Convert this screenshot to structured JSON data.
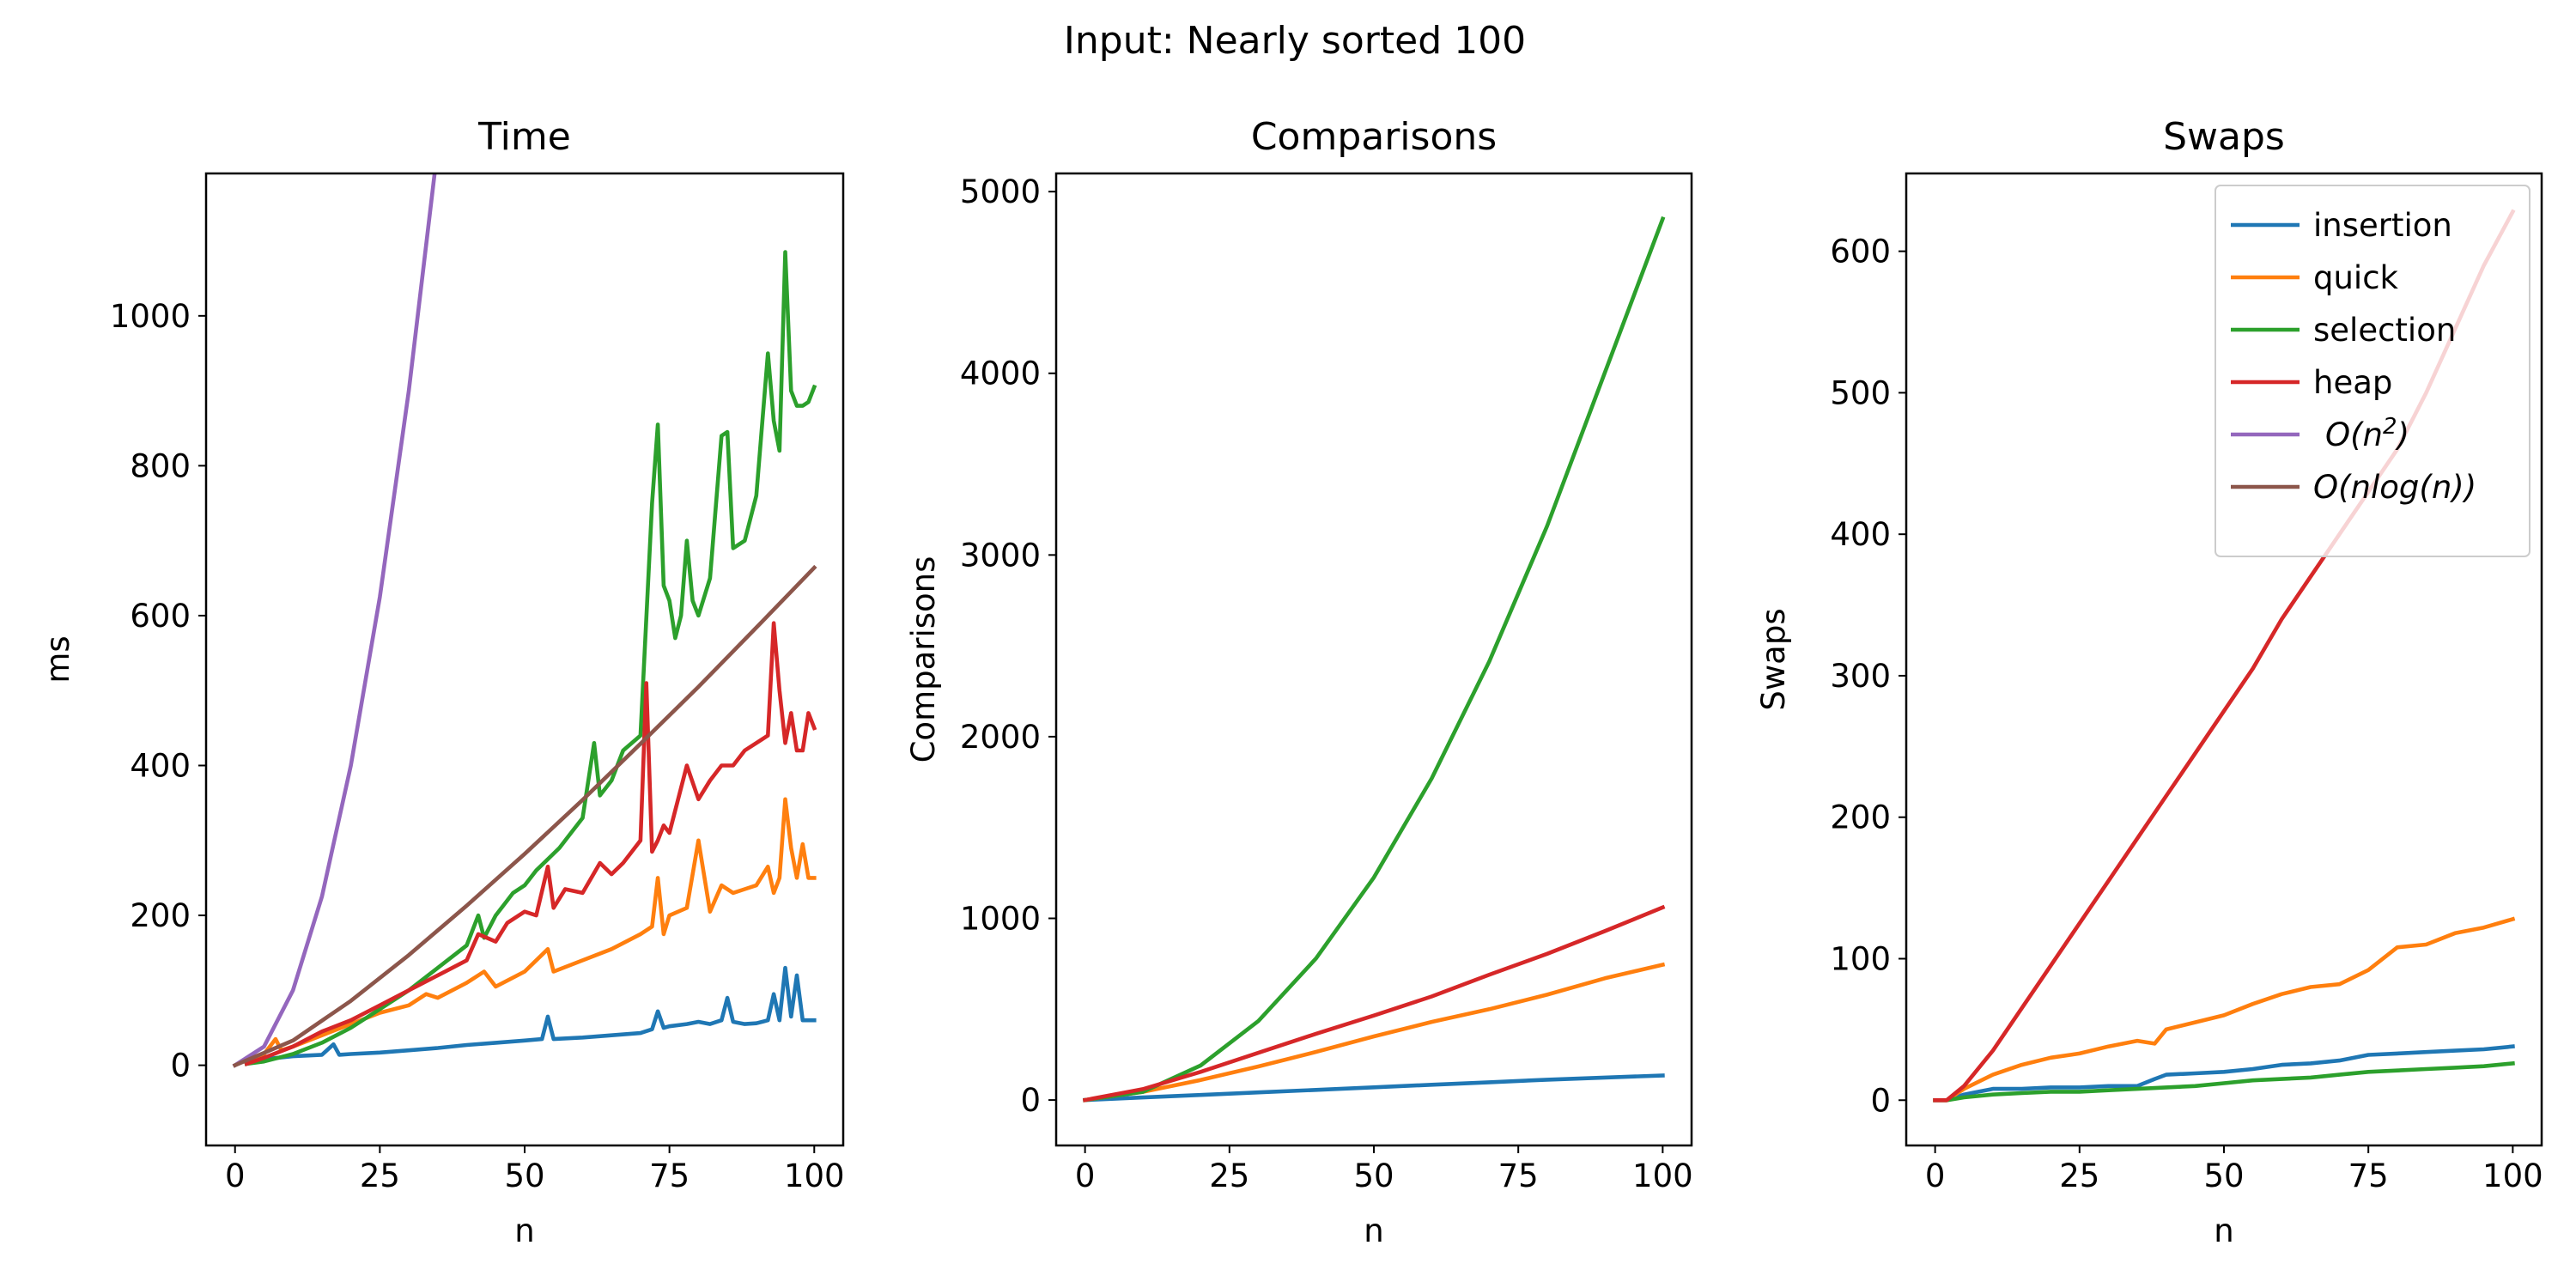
{
  "figure_title": "Input: Nearly sorted 100",
  "legend": {
    "placement": "upper-right",
    "panel": 2,
    "entries": [
      {
        "label": " insertion",
        "color": "#1f77b4",
        "icon": "line-swatch"
      },
      {
        "label": " quick",
        "color": "#ff7f0e",
        "icon": "line-swatch"
      },
      {
        "label": " selection",
        "color": "#2ca02c",
        "icon": "line-swatch"
      },
      {
        "label": " heap",
        "color": "#d62728",
        "icon": "line-swatch"
      },
      {
        "label_parts": [
          "O(n",
          "2",
          ")"
        ],
        "color": "#9467bd",
        "icon": "line-swatch"
      },
      {
        "label": "O(nlog(n))",
        "color": "#8c564b",
        "icon": "line-swatch"
      }
    ]
  },
  "chart_data": [
    {
      "type": "line",
      "title": "Time",
      "xlabel": "n",
      "ylabel": "ms",
      "xlim": [
        -5,
        105
      ],
      "ylim": [
        -107,
        1190
      ],
      "xticks": [
        0,
        25,
        50,
        75,
        100
      ],
      "yticks": [
        0,
        200,
        400,
        600,
        800,
        1000
      ],
      "grid": false,
      "series": [
        {
          "color": "#1f77b4",
          "x": [
            2,
            5,
            10,
            15,
            17,
            18,
            20,
            25,
            30,
            35,
            40,
            45,
            50,
            53,
            54,
            55,
            60,
            65,
            70,
            72,
            73,
            74,
            75,
            78,
            80,
            82,
            84,
            85,
            86,
            88,
            90,
            92,
            93,
            94,
            95,
            96,
            97,
            98,
            99,
            100
          ],
          "y": [
            2,
            8,
            12,
            14,
            28,
            14,
            15,
            17,
            20,
            23,
            27,
            30,
            33,
            35,
            65,
            35,
            37,
            40,
            43,
            48,
            72,
            50,
            52,
            55,
            58,
            55,
            60,
            90,
            58,
            55,
            56,
            60,
            95,
            60,
            130,
            65,
            120,
            60,
            60,
            60
          ]
        },
        {
          "color": "#ff7f0e",
          "x": [
            2,
            5,
            7,
            8,
            10,
            15,
            20,
            25,
            30,
            33,
            35,
            40,
            43,
            45,
            50,
            54,
            55,
            60,
            65,
            70,
            72,
            73,
            74,
            75,
            78,
            80,
            82,
            84,
            86,
            88,
            90,
            92,
            93,
            94,
            95,
            96,
            97,
            98,
            99,
            100
          ],
          "y": [
            5,
            15,
            35,
            20,
            25,
            40,
            55,
            70,
            80,
            95,
            90,
            110,
            125,
            105,
            125,
            155,
            125,
            140,
            155,
            175,
            185,
            250,
            175,
            200,
            210,
            300,
            205,
            240,
            230,
            235,
            240,
            265,
            230,
            250,
            355,
            290,
            250,
            295,
            250,
            250
          ]
        },
        {
          "color": "#2ca02c",
          "x": [
            2,
            5,
            10,
            15,
            20,
            25,
            30,
            35,
            40,
            42,
            43,
            45,
            47,
            48,
            50,
            52,
            54,
            56,
            58,
            60,
            62,
            63,
            65,
            67,
            70,
            72,
            73,
            74,
            75,
            76,
            77,
            78,
            79,
            80,
            82,
            84,
            85,
            86,
            88,
            90,
            92,
            93,
            94,
            95,
            96,
            97,
            98,
            99,
            100
          ],
          "y": [
            2,
            5,
            15,
            30,
            50,
            75,
            100,
            130,
            160,
            200,
            170,
            200,
            220,
            230,
            240,
            260,
            275,
            290,
            310,
            330,
            430,
            360,
            380,
            420,
            440,
            750,
            855,
            640,
            620,
            570,
            600,
            700,
            620,
            600,
            650,
            840,
            845,
            690,
            700,
            760,
            950,
            860,
            820,
            1085,
            900,
            880,
            880,
            885,
            905
          ]
        },
        {
          "color": "#d62728",
          "x": [
            2,
            5,
            10,
            15,
            20,
            25,
            30,
            35,
            40,
            42,
            45,
            47,
            50,
            52,
            54,
            55,
            57,
            60,
            63,
            65,
            67,
            70,
            71,
            72,
            73,
            74,
            75,
            78,
            80,
            82,
            84,
            86,
            88,
            90,
            92,
            93,
            94,
            95,
            96,
            97,
            98,
            99,
            100
          ],
          "y": [
            2,
            10,
            25,
            45,
            60,
            80,
            100,
            120,
            140,
            175,
            165,
            190,
            205,
            200,
            265,
            210,
            235,
            230,
            270,
            255,
            270,
            300,
            510,
            285,
            300,
            320,
            310,
            400,
            355,
            380,
            400,
            400,
            420,
            430,
            440,
            590,
            500,
            430,
            470,
            420,
            420,
            470,
            450
          ]
        },
        {
          "color": "#9467bd",
          "x": [
            0,
            5,
            10,
            15,
            20,
            25,
            30,
            35
          ],
          "y": [
            0,
            25,
            100,
            225,
            400,
            625,
            900,
            1225
          ]
        },
        {
          "color": "#8c564b",
          "x": [
            0,
            10,
            20,
            30,
            40,
            50,
            60,
            70,
            80,
            90,
            100
          ],
          "y": [
            0,
            33,
            86,
            147,
            213,
            282,
            354,
            429,
            505,
            584,
            664
          ]
        }
      ]
    },
    {
      "type": "line",
      "title": "Comparisons",
      "xlabel": "n",
      "ylabel": "Comparisons",
      "xlim": [
        -5,
        105
      ],
      "ylim": [
        -250,
        5100
      ],
      "xticks": [
        0,
        25,
        50,
        75,
        100
      ],
      "yticks": [
        0,
        1000,
        2000,
        3000,
        4000,
        5000
      ],
      "grid": false,
      "series": [
        {
          "color": "#1f77b4",
          "x": [
            0,
            10,
            20,
            30,
            40,
            50,
            60,
            70,
            80,
            90,
            100
          ],
          "y": [
            0,
            14,
            28,
            42,
            56,
            70,
            84,
            98,
            112,
            124,
            135
          ]
        },
        {
          "color": "#ff7f0e",
          "x": [
            0,
            10,
            20,
            30,
            40,
            50,
            60,
            70,
            80,
            90,
            100
          ],
          "y": [
            0,
            45,
            110,
            185,
            265,
            350,
            430,
            500,
            580,
            670,
            745
          ]
        },
        {
          "color": "#2ca02c",
          "x": [
            0,
            10,
            20,
            30,
            40,
            50,
            60,
            70,
            80,
            90,
            100
          ],
          "y": [
            0,
            45,
            190,
            435,
            780,
            1225,
            1770,
            2415,
            3160,
            4005,
            4850
          ]
        },
        {
          "color": "#d62728",
          "x": [
            0,
            10,
            20,
            30,
            40,
            50,
            60,
            70,
            80,
            90,
            100
          ],
          "y": [
            0,
            60,
            155,
            260,
            365,
            465,
            570,
            690,
            805,
            930,
            1060
          ]
        }
      ]
    },
    {
      "type": "line",
      "title": "Swaps",
      "xlabel": "n",
      "ylabel": "Swaps",
      "xlim": [
        -5,
        105
      ],
      "ylim": [
        -32,
        655
      ],
      "xticks": [
        0,
        25,
        50,
        75,
        100
      ],
      "yticks": [
        0,
        100,
        200,
        300,
        400,
        500,
        600
      ],
      "grid": false,
      "series": [
        {
          "color": "#1f77b4",
          "x": [
            0,
            2,
            5,
            10,
            15,
            20,
            25,
            30,
            35,
            38,
            40,
            45,
            50,
            55,
            60,
            65,
            70,
            75,
            80,
            85,
            90,
            95,
            100
          ],
          "y": [
            0,
            0,
            4,
            8,
            8,
            9,
            9,
            10,
            10,
            15,
            18,
            19,
            20,
            22,
            25,
            26,
            28,
            32,
            33,
            34,
            35,
            36,
            38
          ]
        },
        {
          "color": "#ff7f0e",
          "x": [
            0,
            2,
            5,
            10,
            15,
            20,
            25,
            30,
            35,
            38,
            40,
            45,
            50,
            55,
            60,
            65,
            70,
            75,
            80,
            85,
            90,
            95,
            100
          ],
          "y": [
            0,
            0,
            8,
            18,
            25,
            30,
            33,
            38,
            42,
            40,
            50,
            55,
            60,
            68,
            75,
            80,
            82,
            92,
            108,
            110,
            118,
            122,
            128
          ]
        },
        {
          "color": "#2ca02c",
          "x": [
            0,
            2,
            5,
            10,
            15,
            20,
            25,
            30,
            35,
            40,
            45,
            50,
            55,
            60,
            65,
            70,
            75,
            80,
            85,
            90,
            95,
            100
          ],
          "y": [
            0,
            0,
            2,
            4,
            5,
            6,
            6,
            7,
            8,
            9,
            10,
            12,
            14,
            15,
            16,
            18,
            20,
            21,
            22,
            23,
            24,
            26
          ]
        },
        {
          "color": "#d62728",
          "x": [
            0,
            2,
            5,
            10,
            15,
            20,
            25,
            30,
            35,
            40,
            45,
            50,
            55,
            60,
            65,
            70,
            75,
            80,
            85,
            90,
            95,
            100
          ],
          "y": [
            0,
            0,
            10,
            35,
            65,
            95,
            125,
            155,
            185,
            215,
            245,
            275,
            305,
            340,
            370,
            400,
            430,
            460,
            500,
            545,
            590,
            628
          ]
        }
      ]
    }
  ]
}
